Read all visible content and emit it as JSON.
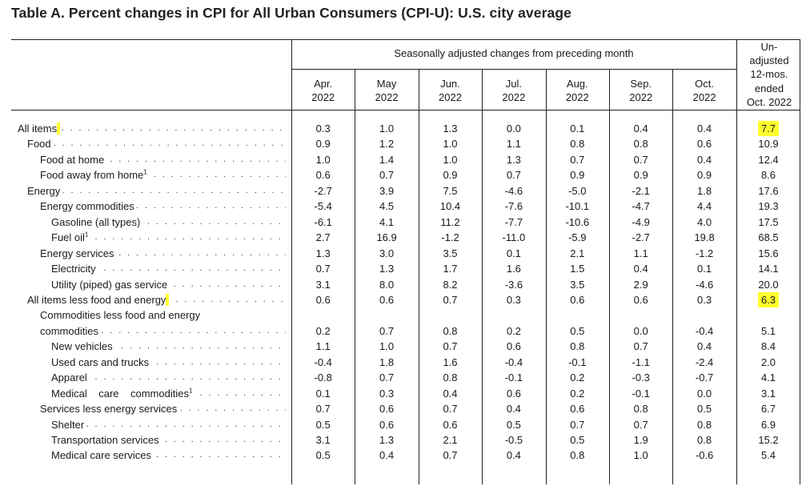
{
  "title": "Table A. Percent changes in CPI for All Urban Consumers (CPI-U): U.S. city average",
  "group_header": "Seasonally adjusted changes from preceding month",
  "unadjusted_header": [
    "Un-",
    "adjusted",
    "12-mos.",
    "ended",
    "Oct. 2022"
  ],
  "columns": [
    {
      "month": "Apr.",
      "year": "2022"
    },
    {
      "month": "May",
      "year": "2022"
    },
    {
      "month": "Jun.",
      "year": "2022"
    },
    {
      "month": "Jul.",
      "year": "2022"
    },
    {
      "month": "Aug.",
      "year": "2022"
    },
    {
      "month": "Sep.",
      "year": "2022"
    },
    {
      "month": "Oct.",
      "year": "2022"
    }
  ],
  "highlight_color": "#ffff2e",
  "rows": [
    {
      "label": "All items",
      "indent": 0,
      "highlight_label": true,
      "values": [
        "0.3",
        "1.0",
        "1.3",
        "0.0",
        "0.1",
        "0.4",
        "0.4",
        "7.7"
      ],
      "highlight_value": true
    },
    {
      "label": "Food",
      "indent": 1,
      "values": [
        "0.9",
        "1.2",
        "1.0",
        "1.1",
        "0.8",
        "0.8",
        "0.6",
        "10.9"
      ]
    },
    {
      "label": "Food at home",
      "indent": 2,
      "values": [
        "1.0",
        "1.4",
        "1.0",
        "1.3",
        "0.7",
        "0.7",
        "0.4",
        "12.4"
      ]
    },
    {
      "label": "Food away from home",
      "sup": "1",
      "indent": 2,
      "values": [
        "0.6",
        "0.7",
        "0.9",
        "0.7",
        "0.9",
        "0.9",
        "0.9",
        "8.6"
      ]
    },
    {
      "label": "Energy",
      "indent": 1,
      "values": [
        "-2.7",
        "3.9",
        "7.5",
        "-4.6",
        "-5.0",
        "-2.1",
        "1.8",
        "17.6"
      ]
    },
    {
      "label": "Energy commodities",
      "indent": 2,
      "values": [
        "-5.4",
        "4.5",
        "10.4",
        "-7.6",
        "-10.1",
        "-4.7",
        "4.4",
        "19.3"
      ]
    },
    {
      "label": "Gasoline (all types)",
      "indent": 3,
      "values": [
        "-6.1",
        "4.1",
        "11.2",
        "-7.7",
        "-10.6",
        "-4.9",
        "4.0",
        "17.5"
      ]
    },
    {
      "label": "Fuel oil",
      "sup": "1",
      "indent": 3,
      "values": [
        "2.7",
        "16.9",
        "-1.2",
        "-11.0",
        "-5.9",
        "-2.7",
        "19.8",
        "68.5"
      ]
    },
    {
      "label": "Energy services",
      "indent": 2,
      "values": [
        "1.3",
        "3.0",
        "3.5",
        "0.1",
        "2.1",
        "1.1",
        "-1.2",
        "15.6"
      ]
    },
    {
      "label": "Electricity",
      "indent": 3,
      "values": [
        "0.7",
        "1.3",
        "1.7",
        "1.6",
        "1.5",
        "0.4",
        "0.1",
        "14.1"
      ]
    },
    {
      "label": "Utility (piped) gas service",
      "indent": 3,
      "values": [
        "3.1",
        "8.0",
        "8.2",
        "-3.6",
        "3.5",
        "2.9",
        "-4.6",
        "20.0"
      ]
    },
    {
      "label": "All items less food and energy",
      "indent": 1,
      "highlight_label": true,
      "values": [
        "0.6",
        "0.6",
        "0.7",
        "0.3",
        "0.6",
        "0.6",
        "0.3",
        "6.3"
      ],
      "highlight_value": true
    },
    {
      "label": "Commodities less food and energy",
      "indent": 2,
      "nodots": true,
      "values": []
    },
    {
      "label": "commodities",
      "indent": 2,
      "values": [
        "0.2",
        "0.7",
        "0.8",
        "0.2",
        "0.5",
        "0.0",
        "-0.4",
        "5.1"
      ]
    },
    {
      "label": "New vehicles",
      "indent": 3,
      "values": [
        "1.1",
        "1.0",
        "0.7",
        "0.6",
        "0.8",
        "0.7",
        "0.4",
        "8.4"
      ]
    },
    {
      "label": "Used cars and trucks",
      "indent": 3,
      "values": [
        "-0.4",
        "1.8",
        "1.6",
        "-0.4",
        "-0.1",
        "-1.1",
        "-2.4",
        "2.0"
      ]
    },
    {
      "label": "Apparel",
      "indent": 3,
      "values": [
        "-0.8",
        "0.7",
        "0.8",
        "-0.1",
        "0.2",
        "-0.3",
        "-0.7",
        "4.1"
      ]
    },
    {
      "label": "Medical    care    commodities",
      "sup": "1",
      "indent": 3,
      "values": [
        "0.1",
        "0.3",
        "0.4",
        "0.6",
        "0.2",
        "-0.1",
        "0.0",
        "3.1"
      ]
    },
    {
      "label": "Services less energy services",
      "indent": 2,
      "values": [
        "0.7",
        "0.6",
        "0.7",
        "0.4",
        "0.6",
        "0.8",
        "0.5",
        "6.7"
      ]
    },
    {
      "label": "Shelter",
      "indent": 3,
      "values": [
        "0.5",
        "0.6",
        "0.6",
        "0.5",
        "0.7",
        "0.7",
        "0.8",
        "6.9"
      ]
    },
    {
      "label": "Transportation services",
      "indent": 3,
      "values": [
        "3.1",
        "1.3",
        "2.1",
        "-0.5",
        "0.5",
        "1.9",
        "0.8",
        "15.2"
      ]
    },
    {
      "label": "Medical care services",
      "indent": 3,
      "values": [
        "0.5",
        "0.4",
        "0.7",
        "0.4",
        "0.8",
        "1.0",
        "-0.6",
        "5.4"
      ]
    }
  ]
}
